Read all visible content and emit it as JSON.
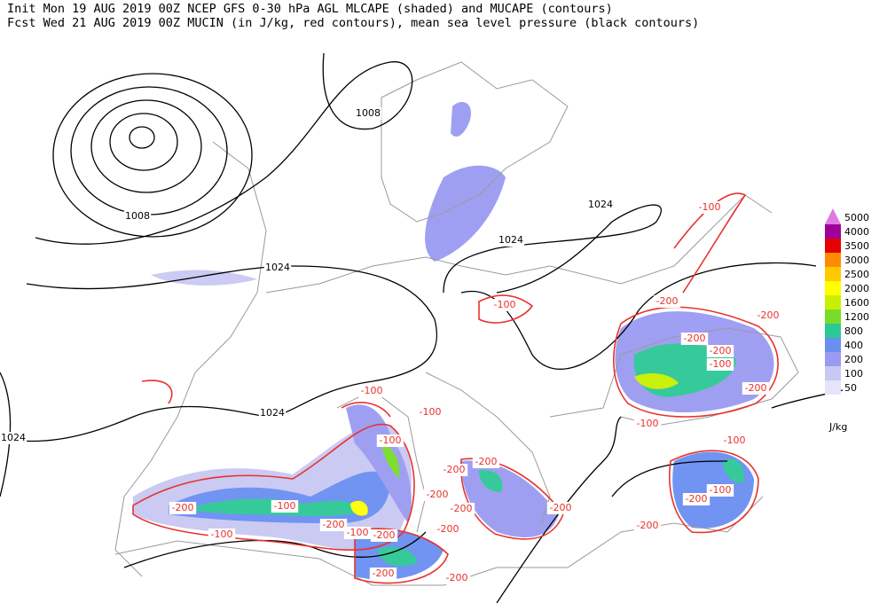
{
  "header": {
    "line1": "Init  Mon 19 AUG 2019 00Z  NCEP GFS 0-30 hPa AGL MLCAPE (shaded) and MUCAPE (contours)",
    "line2": "Fcst Wed 21 AUG 2019 00Z  MUCIN (in J/kg, red contours), mean sea level pressure (black contours)"
  },
  "legend": {
    "levels": [
      50,
      100,
      200,
      400,
      800,
      1200,
      1600,
      2000,
      2500,
      3000,
      3500,
      4000,
      5000
    ],
    "colors": [
      "#e4e4fa",
      "#c8c8f2",
      "#9a9af2",
      "#6a8ef2",
      "#2cc896",
      "#78dc28",
      "#c8f000",
      "#ffff00",
      "#ffc800",
      "#ff8c00",
      "#e60000",
      "#a0009a",
      "#e07ae0"
    ],
    "unit": "J/kg"
  },
  "pressure_labels": [
    1008,
    1008,
    1024,
    1024,
    1024,
    1024,
    1024
  ],
  "cin_labels": [
    -100,
    -100,
    -200,
    -200,
    -200,
    -100,
    -200,
    -200,
    -100,
    -100,
    -100,
    -200,
    -200,
    -100,
    -100,
    -100,
    -200,
    -200,
    -200,
    -200,
    -100,
    -200,
    -100,
    -100,
    -200,
    -200,
    -200,
    -200,
    -200,
    -200
  ]
}
